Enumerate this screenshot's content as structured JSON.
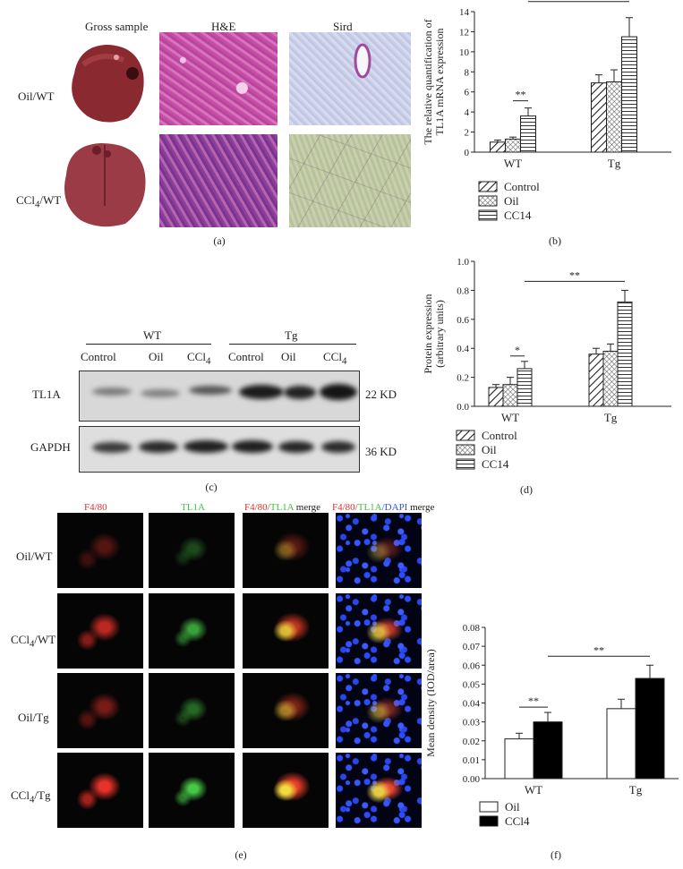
{
  "panel_a": {
    "headers": [
      "Gross sample",
      "H&E",
      "Sird"
    ],
    "rows": [
      "Oil/WT",
      "CCl4/WT"
    ],
    "caption": "(a)"
  },
  "panel_b": {
    "caption": "(b)",
    "chart_data": {
      "type": "bar",
      "ylabel": "The relative quantification of TL1A mRNA expression",
      "ylim": [
        0,
        14
      ],
      "yticks": [
        0,
        2,
        4,
        6,
        8,
        10,
        12,
        14
      ],
      "categories": [
        "WT",
        "Tg"
      ],
      "series": [
        {
          "name": "Control",
          "values": [
            1.0,
            6.9
          ],
          "errors": [
            0.2,
            0.8
          ]
        },
        {
          "name": "Oil",
          "values": [
            1.3,
            7.0
          ],
          "errors": [
            0.2,
            1.2
          ]
        },
        {
          "name": "CC14",
          "values": [
            3.6,
            11.5
          ],
          "errors": [
            0.8,
            1.9
          ]
        }
      ],
      "significance": [
        "**",
        "**"
      ]
    }
  },
  "panel_c": {
    "caption": "(c)",
    "groups": [
      "WT",
      "Tg"
    ],
    "lanes": [
      "Control",
      "Oil",
      "CCl4",
      "Control",
      "Oil",
      "CCl4"
    ],
    "rows": [
      {
        "label": "TL1A",
        "size": "22 KD"
      },
      {
        "label": "GAPDH",
        "size": "36 KD"
      }
    ]
  },
  "panel_d": {
    "caption": "(d)",
    "chart_data": {
      "type": "bar",
      "ylabel": "Protein expression (arbitrary units)",
      "ylim": [
        0,
        1.0
      ],
      "yticks": [
        0.0,
        0.2,
        0.4,
        0.6,
        0.8,
        1.0
      ],
      "categories": [
        "WT",
        "Tg"
      ],
      "series": [
        {
          "name": "Control",
          "values": [
            0.13,
            0.36
          ],
          "errors": [
            0.02,
            0.04
          ]
        },
        {
          "name": "Oil",
          "values": [
            0.15,
            0.38
          ],
          "errors": [
            0.05,
            0.05
          ]
        },
        {
          "name": "CC14",
          "values": [
            0.26,
            0.72
          ],
          "errors": [
            0.05,
            0.08
          ]
        }
      ],
      "significance": [
        "*",
        "**"
      ]
    }
  },
  "panel_e": {
    "caption": "(e)",
    "headers": {
      "f480": "F4/80",
      "tl1a": "TL1A",
      "merge1_a": "F4/80/",
      "merge1_b": "TL1A",
      "merge1_c": " merge",
      "merge2_a": "F4/80/",
      "merge2_b": "TL1A",
      "merge2_c": "/DAPI",
      "merge2_d": " merge"
    },
    "rows": [
      "Oil/WT",
      "CCl4/WT",
      "Oil/Tg",
      "CCl4/Tg"
    ],
    "colors": {
      "red": "#e0302a",
      "green": "#3cc43c",
      "blue": "#3050ff"
    }
  },
  "panel_f": {
    "caption": "(f)",
    "chart_data": {
      "type": "bar",
      "ylabel": "Mean density (IOD/area)",
      "ylim": [
        0,
        0.08
      ],
      "yticks": [
        0.0,
        0.01,
        0.02,
        0.03,
        0.04,
        0.05,
        0.06,
        0.07,
        0.08
      ],
      "categories": [
        "WT",
        "Tg"
      ],
      "series": [
        {
          "name": "Oil",
          "values": [
            0.021,
            0.037
          ],
          "errors": [
            0.003,
            0.005
          ]
        },
        {
          "name": "CCl4",
          "values": [
            0.03,
            0.053
          ],
          "errors": [
            0.005,
            0.007
          ]
        }
      ],
      "significance": [
        "**",
        "**"
      ]
    }
  }
}
